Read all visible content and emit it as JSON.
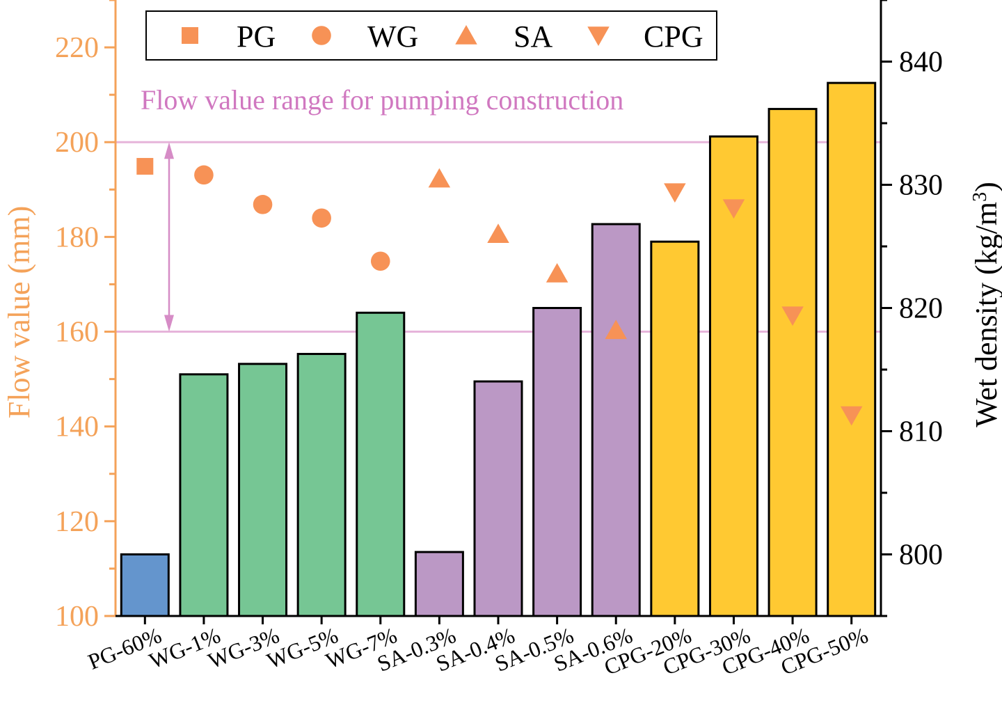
{
  "chart_data": {
    "type": "bar",
    "categories": [
      "PG-60%",
      "WG-1%",
      "WG-3%",
      "WG-5%",
      "WG-7%",
      "SA-0.3%",
      "SA-0.4%",
      "SA-0.5%",
      "SA-0.6%",
      "CPG-20%",
      "CPG-30%",
      "CPG-40%",
      "CPG-50%"
    ],
    "bar_values": [
      113,
      151,
      153.2,
      155.3,
      164,
      113.5,
      149.5,
      165,
      182.7,
      179,
      201.2,
      207,
      212.5
    ],
    "bar_colors": [
      "#6495CD",
      "#76C694",
      "#76C694",
      "#76C694",
      "#76C694",
      "#BB98C5",
      "#BB98C5",
      "#BB98C5",
      "#BB98C5",
      "#FFC932",
      "#FFC932",
      "#FFC932",
      "#FFC932"
    ],
    "series": [
      {
        "name": "PG",
        "marker": "square",
        "values": [
          831.5,
          null,
          null,
          null,
          null,
          null,
          null,
          null,
          null,
          null,
          null,
          null,
          null
        ]
      },
      {
        "name": "WG",
        "marker": "circle",
        "values": [
          null,
          830.8,
          828.4,
          827.3,
          823.8,
          null,
          null,
          null,
          null,
          null,
          null,
          null,
          null
        ]
      },
      {
        "name": "SA",
        "marker": "triangle-up",
        "values": [
          null,
          null,
          null,
          null,
          null,
          830.5,
          826,
          822.8,
          818.2,
          null,
          null,
          null,
          null
        ]
      },
      {
        "name": "CPG",
        "marker": "triangle-down",
        "values": [
          null,
          null,
          null,
          null,
          null,
          null,
          null,
          null,
          null,
          829.4,
          828.1,
          819.4,
          811.3
        ]
      }
    ],
    "title": "",
    "ylabel_left": "Flow value (mm)",
    "ylabel_right_prefix": "Wet density (kg/m",
    "ylabel_right_sup": "3",
    "ylabel_right_suffix": ")",
    "ylim_left": [
      100,
      230
    ],
    "yticks_left": [
      100,
      120,
      140,
      160,
      180,
      200,
      220
    ],
    "ylim_right": [
      795,
      845
    ],
    "yticks_right": [
      800,
      810,
      820,
      830,
      840
    ],
    "range_lines": [
      160,
      200
    ],
    "annotation": "Flow value range for pumping construction",
    "legend_position": "top-center",
    "colors": {
      "left_axis": "#F4A259",
      "right_axis": "#000000",
      "marker": "#F79256",
      "range": "#D68CC6",
      "range_line": "#E6B4DA",
      "annotation": "#D078C0"
    }
  }
}
